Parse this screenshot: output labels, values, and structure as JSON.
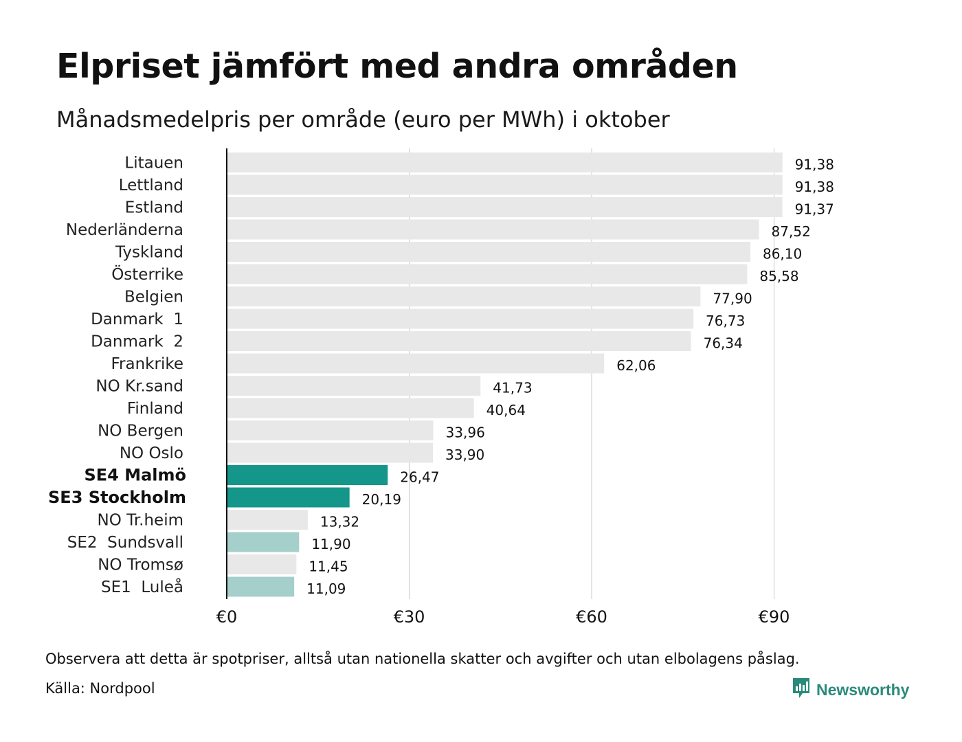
{
  "title": "Elpriset jämfört med andra områden",
  "subtitle": "Månadsmedelpris per område (euro per MWh) i oktober",
  "note": "Observera att detta är spotpriser, alltså utan nationella skatter och avgifter och utan elbolagens påslag.",
  "source": "Källa: Nordpool",
  "brand": {
    "name": "Newsworthy",
    "icon": "newsworthy-logo-icon",
    "color": "#2a8a7a"
  },
  "colors": {
    "default": "#e8e8e8",
    "highlight_dark": "#14968a",
    "highlight_light": "#a5cfca",
    "grid": "#c8c8c8",
    "axis": "#111111"
  },
  "chart_data": {
    "type": "bar",
    "orientation": "horizontal",
    "categories": [
      "Litauen",
      "Lettland",
      "Estland",
      "Nederländerna",
      "Tyskland",
      "Österrike",
      "Belgien",
      "Danmark  1",
      "Danmark  2",
      "Frankrike",
      "NO Kr.sand",
      "Finland",
      "NO Bergen",
      "NO Oslo",
      "SE4 Malmö",
      "SE3 Stockholm",
      "NO Tr.heim",
      "SE2  Sundsvall",
      "NO Tromsø",
      "SE1  Luleå"
    ],
    "values": [
      91.38,
      91.38,
      91.37,
      87.52,
      86.1,
      85.58,
      77.9,
      76.73,
      76.34,
      62.06,
      41.73,
      40.64,
      33.96,
      33.9,
      26.47,
      20.19,
      13.32,
      11.9,
      11.45,
      11.09
    ],
    "value_labels": [
      "91,38",
      "91,38",
      "91,37",
      "87,52",
      "86,10",
      "85,58",
      "77,90",
      "76,73",
      "76,34",
      "62,06",
      "41,73",
      "40,64",
      "33,96",
      "33,90",
      "26,47",
      "20,19",
      "13,32",
      "11,90",
      "11,45",
      "11,09"
    ],
    "bar_style": [
      "default",
      "default",
      "default",
      "default",
      "default",
      "default",
      "default",
      "default",
      "default",
      "default",
      "default",
      "default",
      "default",
      "default",
      "highlight_dark",
      "highlight_dark",
      "default",
      "highlight_light",
      "default",
      "highlight_light"
    ],
    "bold_labels": [
      false,
      false,
      false,
      false,
      false,
      false,
      false,
      false,
      false,
      false,
      false,
      false,
      false,
      false,
      true,
      true,
      false,
      false,
      false,
      false
    ],
    "xlim": [
      0,
      100
    ],
    "xticks": [
      0,
      30,
      60,
      90
    ],
    "xtick_labels": [
      "€0",
      "€30",
      "€60",
      "€90"
    ],
    "grid": true
  }
}
